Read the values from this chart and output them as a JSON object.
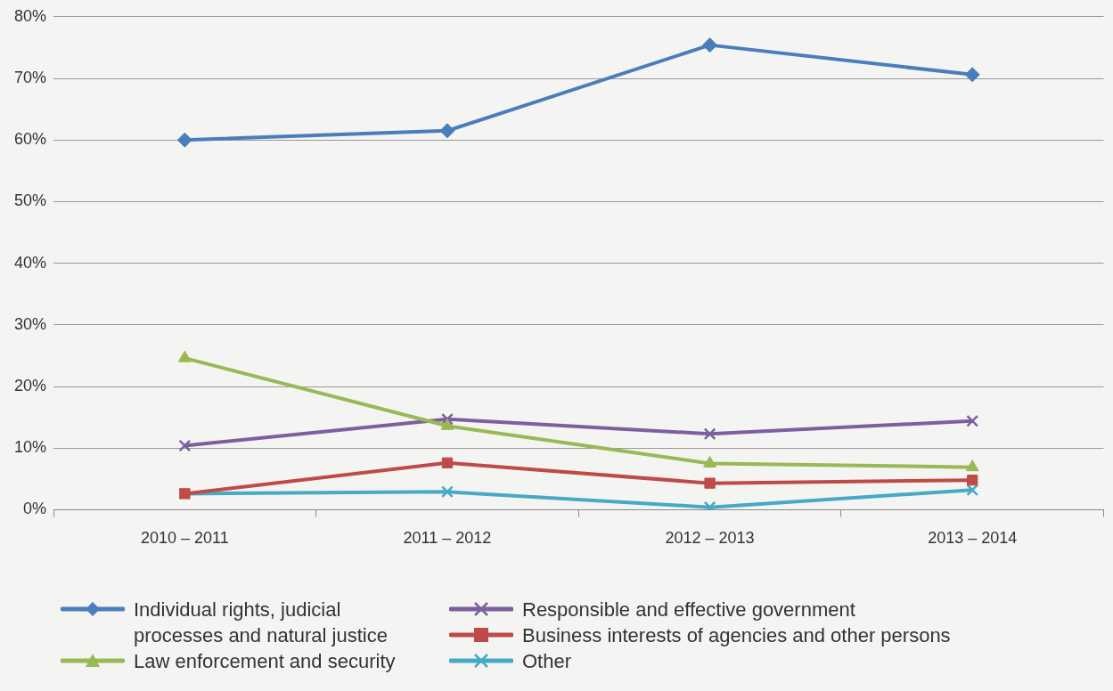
{
  "chart_data": {
    "type": "line",
    "categories": [
      "2010 – 2011",
      "2011 – 2012",
      "2012 – 2013",
      "2013 – 2014"
    ],
    "ylim": [
      0,
      80
    ],
    "yticks": [
      {
        "value": 0,
        "label": "0%"
      },
      {
        "value": 10,
        "label": "10%"
      },
      {
        "value": 20,
        "label": "20%"
      },
      {
        "value": 30,
        "label": "30%"
      },
      {
        "value": 40,
        "label": "40%"
      },
      {
        "value": 50,
        "label": "50%"
      },
      {
        "value": 60,
        "label": "60%"
      },
      {
        "value": 70,
        "label": "70%"
      },
      {
        "value": 80,
        "label": "80%"
      }
    ],
    "grid": "y",
    "legend": "bottom",
    "line_style": "solid",
    "series": [
      {
        "name": "Individual rights, judicial processes and natural justice",
        "color": "#4a7ebb",
        "marker": "diamond",
        "values": [
          60,
          61.5,
          75.4,
          70.6
        ]
      },
      {
        "name": "Law enforcement and security",
        "color": "#98b954",
        "marker": "triangle",
        "values": [
          24.6,
          13.6,
          7.5,
          6.9
        ]
      },
      {
        "name": "Responsible and effective government",
        "color": "#7d5fa0",
        "marker": "cross",
        "values": [
          10.4,
          14.7,
          12.3,
          14.4
        ]
      },
      {
        "name": "Business interests of agencies and other persons",
        "color": "#be4b48",
        "marker": "square",
        "values": [
          2.6,
          7.6,
          4.3,
          4.8
        ]
      },
      {
        "name": "Other",
        "color": "#46aac5",
        "marker": "cross",
        "values": [
          2.6,
          2.9,
          0.4,
          3.2
        ]
      }
    ]
  }
}
